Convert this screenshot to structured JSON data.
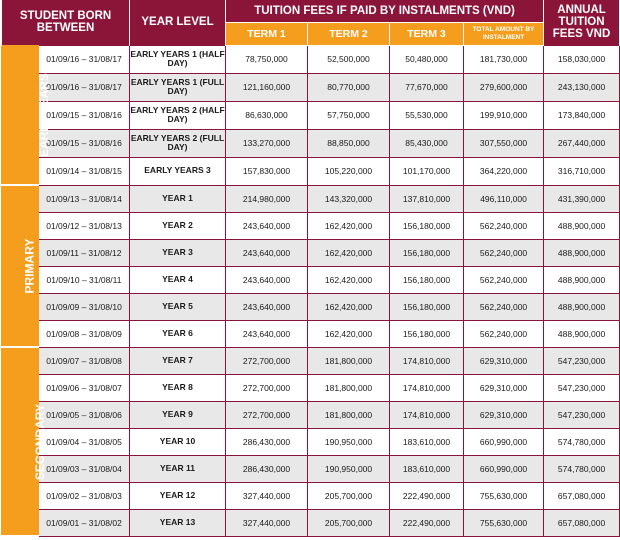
{
  "headers": {
    "born": "STUDENT BORN BETWEEN",
    "level": "YEAR LEVEL",
    "instalments": "TUITION FEES IF PAID BY INSTALMENTS (VND)",
    "annual": "ANNUAL TUITION FEES VND",
    "term1": "TERM 1",
    "term2": "TERM 2",
    "term3": "TERM 3",
    "total": "TOTAL AMOUNT BY INSTALMENT"
  },
  "groups": [
    {
      "name": "EARLY YEARS",
      "rows": [
        {
          "born": "01/09/16 – 31/08/17",
          "level": "EARLY YEARS 1 (HALF DAY)",
          "t1": "78,750,000",
          "t2": "52,500,000",
          "t3": "50,480,000",
          "total": "181,730,000",
          "annual": "158,030,000"
        },
        {
          "born": "01/09/16 – 31/08/17",
          "level": "EARLY YEARS 1 (FULL DAY)",
          "t1": "121,160,000",
          "t2": "80,770,000",
          "t3": "77,670,000",
          "total": "279,600,000",
          "annual": "243,130,000"
        },
        {
          "born": "01/09/15 – 31/08/16",
          "level": "EARLY YEARS 2 (HALF DAY)",
          "t1": "86,630,000",
          "t2": "57,750,000",
          "t3": "55,530,000",
          "total": "199,910,000",
          "annual": "173,840,000"
        },
        {
          "born": "01/09/15 – 31/08/16",
          "level": "EARLY YEARS 2 (FULL DAY)",
          "t1": "133,270,000",
          "t2": "88,850,000",
          "t3": "85,430,000",
          "total": "307,550,000",
          "annual": "267,440,000"
        },
        {
          "born": "01/09/14 – 31/08/15",
          "level": "EARLY YEARS 3",
          "t1": "157,830,000",
          "t2": "105,220,000",
          "t3": "101,170,000",
          "total": "364,220,000",
          "annual": "316,710,000"
        }
      ]
    },
    {
      "name": "PRIMARY",
      "rows": [
        {
          "born": "01/09/13 – 31/08/14",
          "level": "YEAR 1",
          "t1": "214,980,000",
          "t2": "143,320,000",
          "t3": "137,810,000",
          "total": "496,110,000",
          "annual": "431,390,000"
        },
        {
          "born": "01/09/12 – 31/08/13",
          "level": "YEAR 2",
          "t1": "243,640,000",
          "t2": "162,420,000",
          "t3": "156,180,000",
          "total": "562,240,000",
          "annual": "488,900,000"
        },
        {
          "born": "01/09/11 – 31/08/12",
          "level": "YEAR 3",
          "t1": "243,640,000",
          "t2": "162,420,000",
          "t3": "156,180,000",
          "total": "562,240,000",
          "annual": "488,900,000"
        },
        {
          "born": "01/09/10 – 31/08/11",
          "level": "YEAR 4",
          "t1": "243,640,000",
          "t2": "162,420,000",
          "t3": "156,180,000",
          "total": "562,240,000",
          "annual": "488,900,000"
        },
        {
          "born": "01/09/09 – 31/08/10",
          "level": "YEAR 5",
          "t1": "243,640,000",
          "t2": "162,420,000",
          "t3": "156,180,000",
          "total": "562,240,000",
          "annual": "488,900,000"
        },
        {
          "born": "01/09/08 – 31/08/09",
          "level": "YEAR 6",
          "t1": "243,640,000",
          "t2": "162,420,000",
          "t3": "156,180,000",
          "total": "562,240,000",
          "annual": "488,900,000"
        }
      ]
    },
    {
      "name": "SECONDARY",
      "rows": [
        {
          "born": "01/09/07 – 31/08/08",
          "level": "YEAR 7",
          "t1": "272,700,000",
          "t2": "181,800,000",
          "t3": "174,810,000",
          "total": "629,310,000",
          "annual": "547,230,000"
        },
        {
          "born": "01/09/06 – 31/08/07",
          "level": "YEAR 8",
          "t1": "272,700,000",
          "t2": "181,800,000",
          "t3": "174,810,000",
          "total": "629,310,000",
          "annual": "547,230,000"
        },
        {
          "born": "01/09/05 – 31/08/06",
          "level": "YEAR 9",
          "t1": "272,700,000",
          "t2": "181,800,000",
          "t3": "174,810,000",
          "total": "629,310,000",
          "annual": "547,230,000"
        },
        {
          "born": "01/09/04 – 31/08/05",
          "level": "YEAR 10",
          "t1": "286,430,000",
          "t2": "190,950,000",
          "t3": "183,610,000",
          "total": "660,990,000",
          "annual": "574,780,000"
        },
        {
          "born": "01/09/03 – 31/08/04",
          "level": "YEAR 11",
          "t1": "286,430,000",
          "t2": "190,950,000",
          "t3": "183,610,000",
          "total": "660,990,000",
          "annual": "574,780,000"
        },
        {
          "born": "01/09/02 – 31/08/03",
          "level": "YEAR 12",
          "t1": "327,440,000",
          "t2": "205,700,000",
          "t3": "222,490,000",
          "total": "755,630,000",
          "annual": "657,080,000"
        },
        {
          "born": "01/09/01 – 31/08/02",
          "level": "YEAR 13",
          "t1": "327,440,000",
          "t2": "205,700,000",
          "t3": "222,490,000",
          "total": "755,630,000",
          "annual": "657,080,000"
        }
      ]
    }
  ]
}
